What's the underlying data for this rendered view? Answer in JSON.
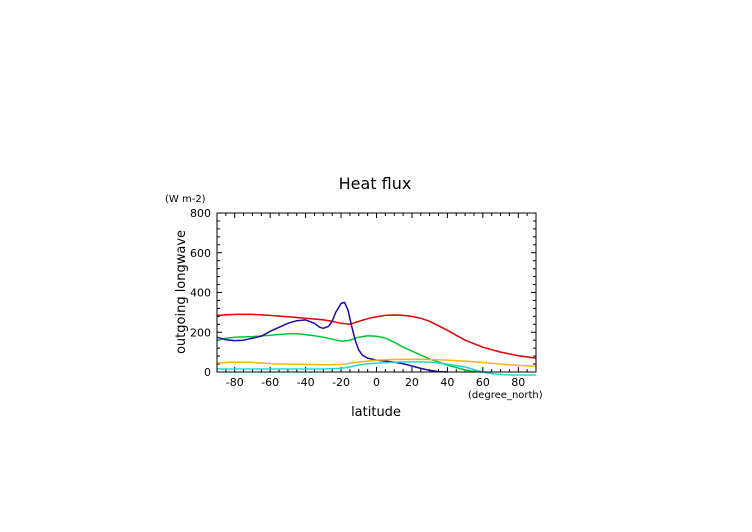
{
  "chart_data": {
    "type": "line",
    "title": "Heat flux",
    "ylabel": "outgoing longwave",
    "yunit": "(W m-2)",
    "xlabel": "latitude",
    "xunit": "(degree_north)",
    "xlim": [
      -90,
      90
    ],
    "ylim": [
      0,
      800
    ],
    "xticks": [
      -80,
      -60,
      -40,
      -20,
      0,
      20,
      40,
      60,
      80
    ],
    "yticks": [
      0,
      200,
      400,
      600,
      800
    ],
    "grid": false,
    "series": [
      {
        "color": "#e00000",
        "x": [
          -90,
          -80,
          -70,
          -60,
          -50,
          -40,
          -30,
          -25,
          -20,
          -15,
          -10,
          -5,
          0,
          5,
          10,
          15,
          20,
          25,
          30,
          40,
          50,
          60,
          70,
          80,
          90
        ],
        "y": [
          285,
          290,
          290,
          285,
          278,
          270,
          262,
          255,
          245,
          240,
          255,
          268,
          278,
          285,
          287,
          285,
          280,
          270,
          255,
          210,
          160,
          125,
          100,
          82,
          70
        ]
      },
      {
        "color": "#00c832",
        "x": [
          -90,
          -85,
          -80,
          -70,
          -60,
          -50,
          -45,
          -40,
          -35,
          -30,
          -25,
          -20,
          -15,
          -10,
          -5,
          0,
          5,
          10,
          15,
          20,
          25,
          30,
          40,
          50,
          55,
          60
        ],
        "y": [
          160,
          170,
          175,
          178,
          185,
          192,
          192,
          188,
          182,
          175,
          165,
          155,
          160,
          175,
          182,
          180,
          170,
          150,
          125,
          105,
          85,
          65,
          35,
          10,
          2,
          0
        ]
      },
      {
        "color": "#1a0aa8",
        "x": [
          -90,
          -85,
          -80,
          -75,
          -70,
          -65,
          -60,
          -55,
          -50,
          -45,
          -40,
          -35,
          -32,
          -30,
          -27,
          -25,
          -23,
          -20,
          -18,
          -16,
          -14,
          -12,
          -10,
          -8,
          -5,
          0,
          5,
          10,
          15,
          20,
          25,
          30,
          35,
          40
        ],
        "y": [
          175,
          162,
          158,
          160,
          170,
          180,
          205,
          225,
          245,
          258,
          262,
          245,
          225,
          220,
          230,
          255,
          300,
          345,
          350,
          310,
          230,
          160,
          110,
          85,
          70,
          60,
          55,
          50,
          42,
          30,
          18,
          8,
          2,
          0
        ]
      },
      {
        "color": "#ffb400",
        "x": [
          -90,
          -80,
          -70,
          -60,
          -50,
          -40,
          -30,
          -20,
          -10,
          0,
          10,
          20,
          30,
          40,
          50,
          60,
          70,
          80,
          90
        ],
        "y": [
          45,
          50,
          48,
          42,
          40,
          38,
          36,
          38,
          50,
          60,
          63,
          64,
          63,
          60,
          55,
          48,
          40,
          33,
          28
        ]
      },
      {
        "color": "#20d8d0",
        "x": [
          -90,
          -70,
          -50,
          -40,
          -30,
          -20,
          -15,
          -10,
          -5,
          0,
          5,
          10,
          20,
          30,
          40,
          50,
          55,
          60,
          65,
          70,
          75,
          80,
          85,
          90
        ],
        "y": [
          15,
          15,
          15,
          15,
          15,
          18,
          25,
          35,
          42,
          45,
          47,
          50,
          52,
          50,
          40,
          25,
          12,
          0,
          -8,
          -12,
          -15,
          -15,
          -15,
          -15
        ]
      }
    ]
  }
}
